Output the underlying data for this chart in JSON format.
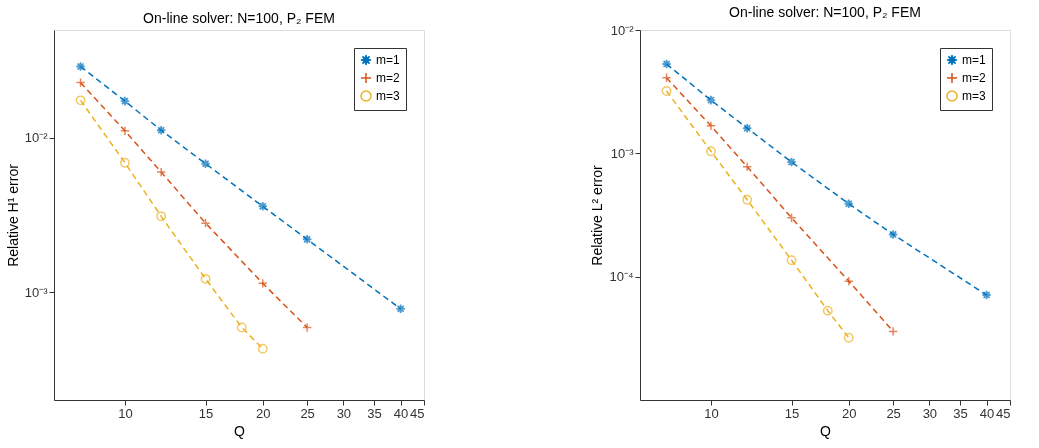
{
  "chart_data": [
    {
      "type": "line",
      "title": "On-line solver: N=100, P₂ FEM",
      "xlabel": "Q",
      "ylabel": "Relative H¹ error",
      "log": "xy",
      "grid": false,
      "legend": "top right",
      "line_style": "dashed",
      "xlim": [
        7,
        45
      ],
      "xticks": [
        10,
        15,
        20,
        25,
        30,
        35,
        40,
        45
      ],
      "ylim": [
        0.0002,
        0.05
      ],
      "yticks": [
        {
          "value": 0.01,
          "label": "10⁻²"
        },
        {
          "value": 0.001,
          "label": "10⁻³"
        }
      ],
      "series": [
        {
          "name": "m=1",
          "color": "#0072bd",
          "marker": "star",
          "x": [
            8,
            10,
            12,
            15,
            20,
            25,
            40
          ],
          "values": [
            0.029,
            0.0173,
            0.0112,
            0.0068,
            0.0036,
            0.0022,
            0.00078
          ]
        },
        {
          "name": "m=2",
          "color": "#d95319",
          "marker": "cross",
          "x": [
            8,
            10,
            12,
            15,
            20,
            25
          ],
          "values": [
            0.0228,
            0.0111,
            0.006,
            0.0028,
            0.00114,
            0.00059
          ]
        },
        {
          "name": "m=3",
          "color": "#edb120",
          "marker": "circle",
          "x": [
            8,
            10,
            12,
            15,
            18,
            20
          ],
          "values": [
            0.0175,
            0.0069,
            0.0031,
            0.00122,
            0.00059,
            0.00043
          ]
        }
      ]
    },
    {
      "type": "line",
      "title": "On-line solver: N=100, P₂ FEM",
      "xlabel": "Q",
      "ylabel": "Relative L² error",
      "log": "xy",
      "grid": false,
      "legend": "top right",
      "line_style": "dashed",
      "xlim": [
        7,
        45
      ],
      "xticks": [
        10,
        15,
        20,
        25,
        30,
        35,
        40,
        45
      ],
      "ylim": [
        1e-05,
        0.01
      ],
      "yticks": [
        {
          "value": 0.01,
          "label": "10⁻²"
        },
        {
          "value": 0.001,
          "label": "10⁻³"
        },
        {
          "value": 0.0001,
          "label": "10⁻⁴"
        }
      ],
      "series": [
        {
          "name": "m=1",
          "color": "#0072bd",
          "marker": "star",
          "x": [
            8,
            10,
            12,
            15,
            20,
            25,
            40
          ],
          "values": [
            0.0053,
            0.0027,
            0.0016,
            0.00085,
            0.00039,
            0.00022,
            7.1e-05
          ]
        },
        {
          "name": "m=2",
          "color": "#d95319",
          "marker": "cross",
          "x": [
            8,
            10,
            12,
            15,
            20,
            25
          ],
          "values": [
            0.0041,
            0.00167,
            0.00078,
            0.0003,
            9.2e-05,
            3.6e-05
          ]
        },
        {
          "name": "m=3",
          "color": "#edb120",
          "marker": "circle",
          "x": [
            8,
            10,
            12,
            15,
            18,
            20
          ],
          "values": [
            0.0032,
            0.00104,
            0.00042,
            0.000136,
            5.3e-05,
            3.2e-05
          ]
        }
      ]
    }
  ]
}
